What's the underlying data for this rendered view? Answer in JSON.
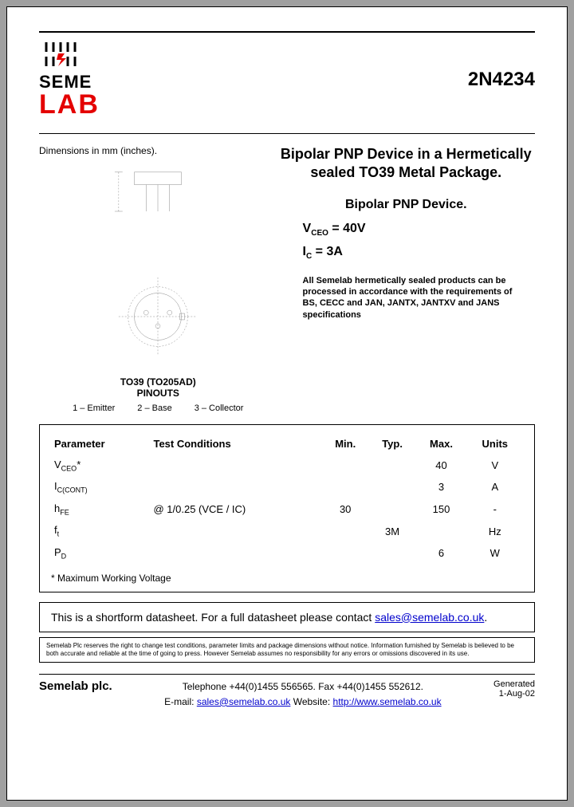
{
  "header": {
    "logo_top": "SEME",
    "logo_bottom": "LAB",
    "part_number": "2N4234"
  },
  "left": {
    "dimensions_label": "Dimensions in mm (inches).",
    "pinouts_title1": "TO39 (TO205AD)",
    "pinouts_title2": "PINOUTS",
    "pin1": "1 – Emitter",
    "pin2": "2 – Base",
    "pin3": "3 – Collector"
  },
  "right": {
    "title": "Bipolar PNP Device in a Hermetically sealed TO39 Metal Package.",
    "subtitle": "Bipolar PNP Device.",
    "vceo_label": "V",
    "vceo_sub": "CEO",
    "vceo_val": " =  40V",
    "ic_label": "I",
    "ic_sub": "C",
    "ic_val": " = 3A",
    "note": "All Semelab hermetically sealed products can be processed in accordance with the requirements of BS, CECC and JAN, JANTX, JANTXV and JANS specifications"
  },
  "table": {
    "headers": {
      "param": "Parameter",
      "cond": "Test Conditions",
      "min": "Min.",
      "typ": "Typ.",
      "max": "Max.",
      "units": "Units"
    },
    "rows": [
      {
        "param": "V",
        "sub": "CEO",
        "suffix": "*",
        "cond": "",
        "min": "",
        "typ": "",
        "max": "40",
        "units": "V"
      },
      {
        "param": "I",
        "sub": "C(CONT)",
        "suffix": "",
        "cond": "",
        "min": "",
        "typ": "",
        "max": "3",
        "units": "A"
      },
      {
        "param": "h",
        "sub": "FE",
        "suffix": "",
        "cond": "@ 1/0.25 (VCE / IC)",
        "min": "30",
        "typ": "",
        "max": "150",
        "units": "-"
      },
      {
        "param": "f",
        "sub": "t",
        "suffix": "",
        "cond": "",
        "min": "",
        "typ": "3M",
        "max": "",
        "units": "Hz"
      },
      {
        "param": "P",
        "sub": "D",
        "suffix": "",
        "cond": "",
        "min": "",
        "typ": "",
        "max": "6",
        "units": "W"
      }
    ],
    "footnote": "* Maximum Working Voltage"
  },
  "shortform": {
    "text": "This is a shortform datasheet. For a full datasheet please contact ",
    "email": "sales@semelab.co.uk",
    "period": "."
  },
  "disclaimer": "Semelab Plc reserves the right to change test conditions, parameter limits and package dimensions without notice. Information furnished by Semelab is believed to be both accurate and reliable at the time of going to press. However Semelab assumes no responsibility for any errors or omissions discovered in its use.",
  "footer": {
    "company": "Semelab plc.",
    "phone": "Telephone +44(0)1455 556565. Fax +44(0)1455 552612.",
    "email_label": "E-mail: ",
    "email": "sales@semelab.co.uk",
    "web_label": "   Website: ",
    "website": "http://www.semelab.co.uk",
    "gen1": "Generated",
    "gen2": "1-Aug-02"
  },
  "colors": {
    "red": "#e40000",
    "link": "#0000cc"
  }
}
